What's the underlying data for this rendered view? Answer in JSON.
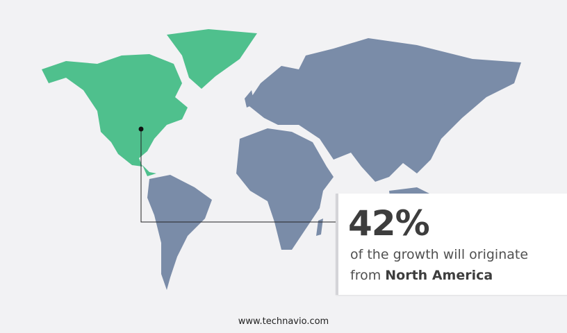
{
  "colors": {
    "highlight": "#4fc08d",
    "land": "#7a8ca8",
    "background": "#f2f2f4",
    "marker": "#111111"
  },
  "highlight_region": "North America",
  "callout": {
    "value": "42%",
    "text_line1": "of the growth will originate",
    "text_line2_prefix": "from",
    "text_line2_region": "North America"
  },
  "footer": {
    "website": "www.technavio.com"
  }
}
